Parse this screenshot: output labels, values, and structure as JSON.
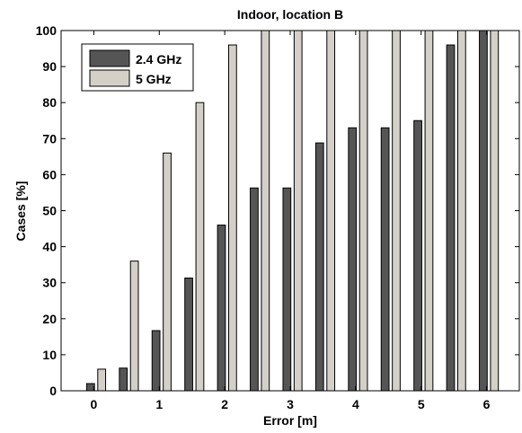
{
  "chart_data": {
    "type": "bar",
    "title": "Indoor, location B",
    "xlabel": "Error [m]",
    "ylabel": "Cases [%]",
    "x": [
      0,
      0.5,
      1,
      1.5,
      2,
      2.5,
      3,
      3.5,
      4,
      4.5,
      5,
      5.5,
      6
    ],
    "xticks": [
      0,
      1,
      2,
      3,
      4,
      5,
      6
    ],
    "xlim": [
      -0.5,
      6.5
    ],
    "ylim": [
      0,
      100
    ],
    "yticks": [
      0,
      10,
      20,
      30,
      40,
      50,
      60,
      70,
      80,
      90,
      100
    ],
    "grid": false,
    "legend_position": "top-left",
    "series": [
      {
        "name": "2.4 GHz",
        "color": "#555555",
        "values": [
          2,
          6.3,
          16.7,
          31.3,
          46,
          56.3,
          56.3,
          68.8,
          73,
          73,
          75,
          96,
          100
        ]
      },
      {
        "name": "5 GHz",
        "color": "#d4d0c8",
        "values": [
          6,
          36,
          66,
          80,
          96,
          100,
          100,
          100,
          100,
          100,
          100,
          100,
          100
        ]
      }
    ]
  }
}
